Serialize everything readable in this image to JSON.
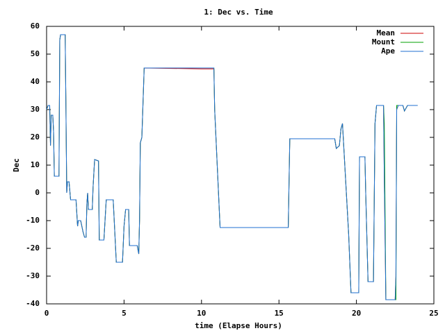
{
  "chart_data": {
    "type": "line",
    "title": "1: Dec vs. Time",
    "x_label": "time (Elapse Hours)",
    "y_label": "Dec",
    "xlim": [
      0,
      25
    ],
    "xticks": [
      0,
      5,
      10,
      15,
      20,
      25
    ],
    "ylim": [
      -40,
      60
    ],
    "yticks": [
      -40,
      -30,
      -20,
      -10,
      0,
      10,
      20,
      30,
      40,
      50,
      60
    ],
    "legend": "top-right",
    "x": [
      0,
      0.1,
      0.2,
      0.25,
      0.3,
      0.4,
      0.45,
      0.5,
      0.8,
      0.85,
      0.9,
      1.2,
      1.25,
      1.3,
      1.35,
      1.45,
      1.55,
      1.9,
      2.0,
      2.05,
      2.2,
      2.35,
      2.45,
      2.55,
      2.6,
      2.65,
      2.7,
      2.95,
      3.0,
      3.1,
      3.35,
      3.4,
      3.7,
      3.85,
      4.3,
      4.5,
      4.9,
      5.0,
      5.1,
      5.3,
      5.35,
      5.85,
      5.95,
      6.0,
      6.05,
      6.15,
      6.3,
      10.0,
      10.8,
      10.85,
      11.2,
      15.6,
      15.7,
      18.6,
      18.7,
      18.9,
      19.0,
      19.1,
      19.15,
      19.3,
      19.5,
      19.65,
      20.15,
      20.2,
      20.55,
      20.6,
      20.75,
      21.1,
      21.2,
      21.3,
      21.75,
      21.8,
      21.9,
      22.5,
      22.55,
      22.6,
      22.7,
      23.0,
      23.1,
      23.3,
      23.95
    ],
    "series": [
      {
        "name": "Mean",
        "color": "#cc0000",
        "values": [
          30,
          31.5,
          31.5,
          17,
          28,
          28,
          22,
          6,
          6,
          55,
          57,
          57,
          30,
          0,
          4,
          4,
          -2.5,
          -2.5,
          -12,
          -10,
          -10,
          -14,
          -16,
          -16,
          -4,
          0,
          -6,
          -6,
          2,
          12,
          11.5,
          -17,
          -17,
          -2.5,
          -2.5,
          -25,
          -25,
          -12,
          -6,
          -6,
          -19,
          -19,
          -22,
          -10,
          18,
          20,
          45,
          44.7,
          44.7,
          30,
          -12.5,
          -12.5,
          19.5,
          19.5,
          16,
          17,
          23,
          25,
          20,
          5,
          -15,
          -36,
          -36,
          13,
          13,
          0,
          -32,
          -32,
          25,
          31.5,
          31.5,
          5,
          -38.5,
          -38.5,
          -30,
          30,
          31.5,
          31.5,
          29.5,
          31.5,
          31.5
        ]
      },
      {
        "name": "Mount",
        "color": "#00a000",
        "values": [
          30,
          31.5,
          31.5,
          17,
          28,
          28,
          22,
          6,
          6,
          55,
          57,
          57,
          30,
          0,
          4,
          4,
          -2.5,
          -2.5,
          -12,
          -10,
          -10,
          -14,
          -16,
          -16,
          -4,
          0,
          -6,
          -6,
          2,
          12,
          11.5,
          -17,
          -17,
          -2.5,
          -2.5,
          -25,
          -25,
          -12,
          -6,
          -6,
          -19,
          -19,
          -22,
          -10,
          18,
          20,
          45,
          45,
          45,
          30,
          -12.5,
          -12.5,
          19.5,
          19.5,
          16,
          17,
          23,
          25,
          20,
          5,
          -15,
          -36,
          -36,
          13,
          13,
          0,
          -32,
          -32,
          25,
          31.5,
          31.5,
          25,
          -38.5,
          -38.5,
          -38.5,
          31.5,
          31.5,
          31.5,
          29.5,
          31.5,
          31.5
        ]
      },
      {
        "name": "Ape",
        "color": "#1f6fd0",
        "values": [
          30,
          31.5,
          31.5,
          17,
          28,
          28,
          22,
          6,
          6,
          55,
          57,
          57,
          30,
          0,
          4,
          4,
          -2.5,
          -2.5,
          -12,
          -10,
          -10,
          -14,
          -16,
          -16,
          -4,
          0,
          -6,
          -6,
          2,
          12,
          11.5,
          -17,
          -17,
          -2.5,
          -2.5,
          -25,
          -25,
          -12,
          -6,
          -6,
          -19,
          -19,
          -22,
          -10,
          18,
          20,
          45,
          45,
          45,
          30,
          -12.5,
          -12.5,
          19.5,
          19.5,
          16,
          17,
          23,
          25,
          20,
          5,
          -15,
          -36,
          -36,
          13,
          13,
          0,
          -32,
          -32,
          25,
          31.5,
          31.5,
          5,
          -38.5,
          -38.5,
          -30,
          30,
          31.5,
          31.5,
          29.5,
          31.5,
          31.5
        ]
      }
    ]
  }
}
